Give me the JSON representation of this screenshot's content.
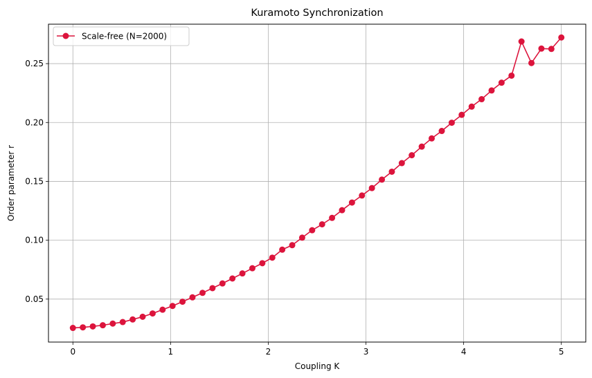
{
  "chart_data": {
    "type": "line",
    "title": "Kuramoto Synchronization",
    "xlabel": "Coupling K",
    "ylabel": "Order parameter r",
    "xlim": [
      -0.25,
      5.25
    ],
    "ylim": [
      0.0135,
      0.2835
    ],
    "xticks": [
      0,
      1,
      2,
      3,
      4,
      5
    ],
    "xtick_labels": [
      "0",
      "1",
      "2",
      "3",
      "4",
      "5"
    ],
    "yticks": [
      0.05,
      0.1,
      0.15,
      0.2,
      0.25
    ],
    "ytick_labels": [
      "0.05",
      "0.10",
      "0.15",
      "0.20",
      "0.25"
    ],
    "grid": true,
    "legend_position": "top-left",
    "series": [
      {
        "name": "Scale-free (N=2000)",
        "color": "#dc143c",
        "marker": "circle",
        "x": [
          0.0,
          0.102,
          0.204,
          0.306,
          0.408,
          0.51,
          0.612,
          0.714,
          0.816,
          0.918,
          1.02,
          1.122,
          1.224,
          1.327,
          1.429,
          1.531,
          1.633,
          1.735,
          1.837,
          1.939,
          2.041,
          2.143,
          2.245,
          2.347,
          2.449,
          2.551,
          2.653,
          2.755,
          2.857,
          2.959,
          3.061,
          3.163,
          3.265,
          3.367,
          3.469,
          3.571,
          3.673,
          3.776,
          3.878,
          3.98,
          4.082,
          4.184,
          4.286,
          4.388,
          4.49,
          4.592,
          4.694,
          4.796,
          4.898,
          5.0
        ],
        "values": [
          0.0255,
          0.026,
          0.0268,
          0.0278,
          0.0292,
          0.0305,
          0.0327,
          0.035,
          0.0378,
          0.041,
          0.0442,
          0.0478,
          0.0515,
          0.0553,
          0.0593,
          0.0633,
          0.0675,
          0.0718,
          0.0762,
          0.0805,
          0.0852,
          0.092,
          0.0958,
          0.1022,
          0.1085,
          0.1135,
          0.119,
          0.1255,
          0.132,
          0.138,
          0.1443,
          0.1515,
          0.1582,
          0.1655,
          0.1722,
          0.1795,
          0.1865,
          0.1928,
          0.1998,
          0.2065,
          0.2135,
          0.2198,
          0.2272,
          0.2338,
          0.2398,
          0.2688,
          0.2505,
          0.2628,
          0.2625,
          0.2722
        ]
      }
    ]
  }
}
